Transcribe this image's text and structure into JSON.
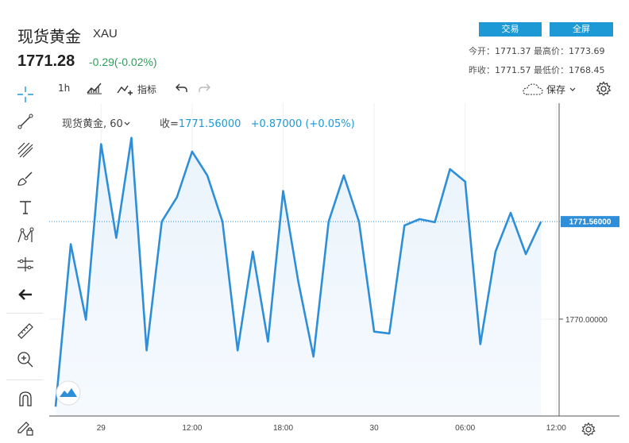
{
  "header": {
    "title": "现货黄金",
    "symbol": "XAU",
    "price": "1771.28",
    "change": "-0.29(-0.02%)",
    "trade_label": "交易",
    "fullscreen_label": "全屏",
    "open_label": "今开：",
    "open": "1771.37",
    "high_label": "最高价：",
    "high": "1773.69",
    "prev_close_label": "昨收：",
    "prev_close": "1771.57",
    "low_label": "最低价：",
    "low": "1768.45"
  },
  "toolbar": {
    "interval": "1h",
    "indicators_label": "指标",
    "save_label": "保存"
  },
  "legend": {
    "series": "现货黄金, 60",
    "close_label": "收=",
    "close_value": "1771.56000",
    "change_value": "+0.87000 (+0.05%)"
  },
  "icons": [
    "crosshair-icon",
    "trend-line-icon",
    "fib-icon",
    "brush-icon",
    "text-icon",
    "pattern-icon",
    "measure-icon",
    "back-arrow-icon",
    "ruler-icon",
    "zoom-in-icon",
    "magnet-icon",
    "lock-pencil-icon",
    "candle-type-icon",
    "undo-icon",
    "redo-icon",
    "cloud-save-icon",
    "settings-icon",
    "tradingview-logo-icon"
  ],
  "colors": {
    "line": "#2e8fd8",
    "accent": "#1d9ad6",
    "up": "#2f9e5a"
  },
  "chart_data": {
    "type": "area",
    "x_ticks": [
      "29",
      "12:00",
      "18:00",
      "30",
      "06:00",
      "12:00"
    ],
    "x_tick_index": [
      3,
      9,
      15,
      21,
      27,
      33
    ],
    "y_ticks": [
      "1770.00000"
    ],
    "last_price_label": "1771.56000",
    "last_value": 1771.56,
    "ylim": [
      1768.45,
      1773.2
    ],
    "values": [
      1768.6,
      1771.2,
      1769.99,
      1772.8,
      1771.3,
      1772.9,
      1769.5,
      1771.56,
      1771.95,
      1772.68,
      1772.3,
      1771.56,
      1769.5,
      1771.08,
      1769.64,
      1772.05,
      1770.6,
      1769.4,
      1771.56,
      1772.3,
      1771.56,
      1769.8,
      1769.77,
      1771.5,
      1771.6,
      1771.55,
      1772.4,
      1772.2,
      1769.6,
      1771.08,
      1771.7,
      1771.04,
      1771.56
    ]
  }
}
